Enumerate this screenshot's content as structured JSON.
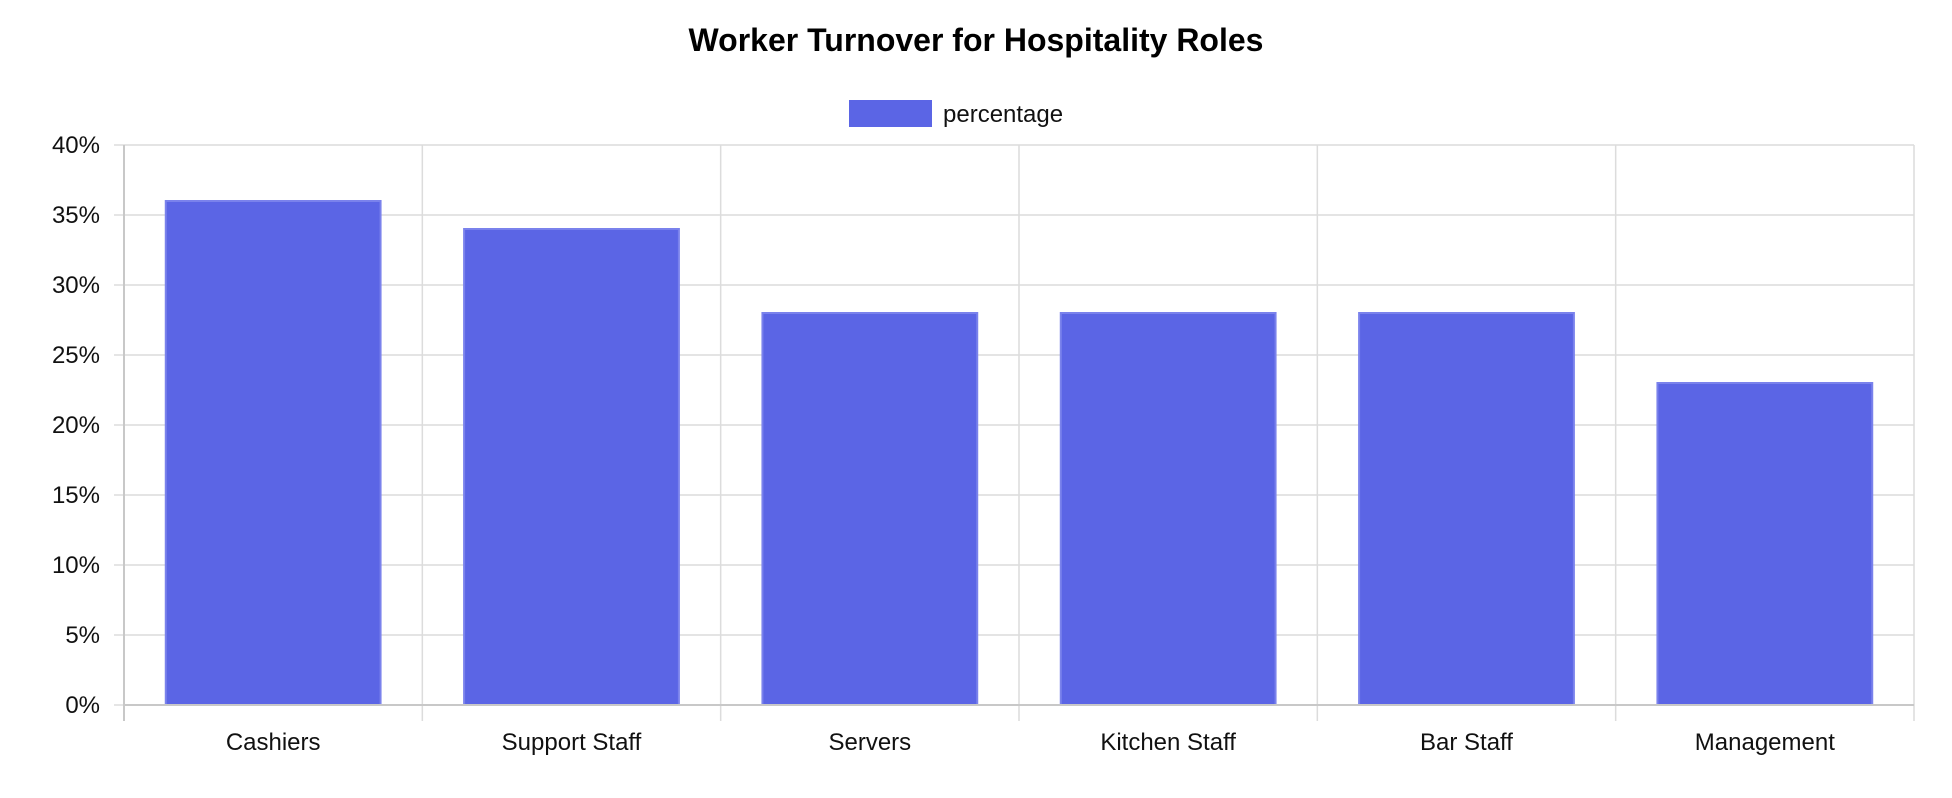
{
  "chart_data": {
    "type": "bar",
    "title": "Worker Turnover for Hospitality Roles",
    "categories": [
      "Cashiers",
      "Support Staff",
      "Servers",
      "Kitchen Staff",
      "Bar Staff",
      "Management"
    ],
    "series": [
      {
        "name": "percentage",
        "values": [
          36,
          34,
          28,
          28,
          28,
          23
        ],
        "color": "#5b65e5"
      }
    ],
    "ylim": [
      0,
      40
    ],
    "y_ticks": [
      0,
      5,
      10,
      15,
      20,
      25,
      30,
      35,
      40
    ],
    "y_tick_suffix": "%",
    "xlabel": "",
    "ylabel": "",
    "grid": true,
    "legend_position": "top-center"
  }
}
